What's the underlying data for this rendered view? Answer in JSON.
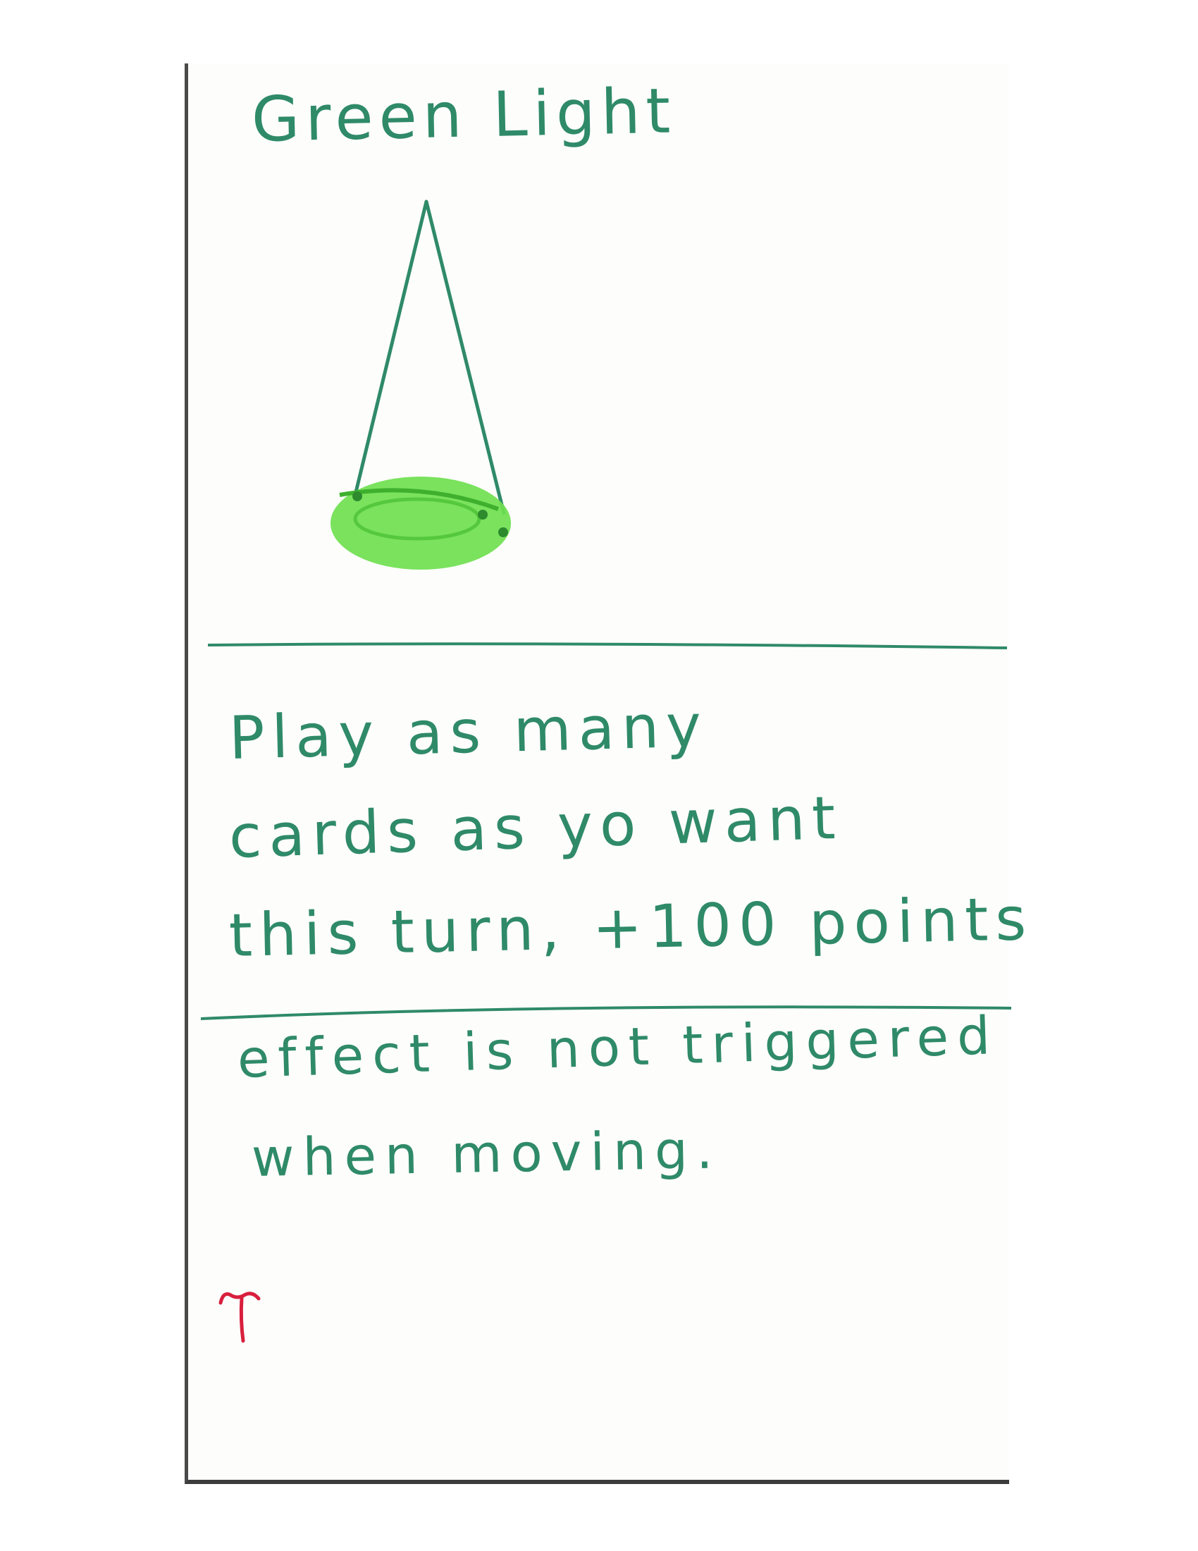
{
  "card": {
    "title": "Green Light",
    "ability": [
      "Play as many",
      "cards as yo want",
      "this turn, +100 points"
    ],
    "rule": [
      "effect is not triggered",
      "when moving."
    ],
    "icons": {
      "illustration": "hanging-green-lamp",
      "corner_mark": "red-t-mark-icon"
    },
    "colors": {
      "ink": "#2f8a68",
      "lamp_fill": "#6fe04f",
      "corner_mark": "#d81f3c",
      "card_edge": "#4a4a4a"
    }
  }
}
